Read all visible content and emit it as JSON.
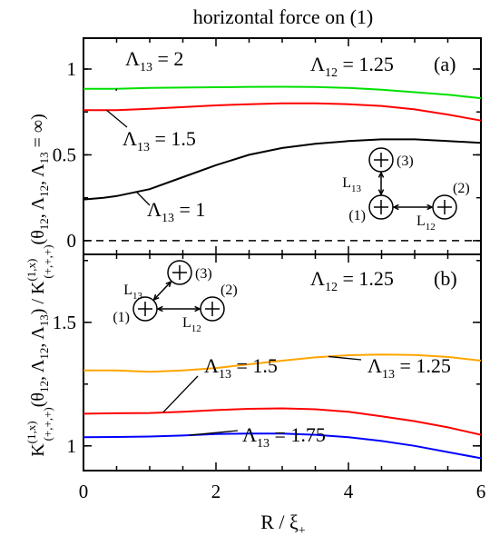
{
  "title": "horizontal force on (1)",
  "xlabel": "R / ξ",
  "xlabel_sub": "+",
  "ylabel": {
    "K": "K",
    "sup": "(1,x)",
    "sub": "(+,+,+)",
    "args": "(θ",
    "a1": "12",
    "a2": ", Λ",
    "a3": "12",
    "a4": ", Λ",
    "a5": "13",
    "a6": ") / ",
    "b_args": "(θ",
    "b1": "12",
    "b2": ", Λ",
    "b3": "12",
    "b4": ", Λ",
    "b5": "13",
    "b6": " = ∞)"
  },
  "chart_data": [
    {
      "type": "line",
      "panel_label": "(a)",
      "header": {
        "sym": "Λ",
        "sub": "12",
        "eq": " = 1.25"
      },
      "x_ticks": [
        "0",
        "2",
        "4",
        "6"
      ],
      "y_ticks": [
        "0",
        "0.5",
        "1"
      ],
      "xlim": [
        0,
        6
      ],
      "ylim": [
        -0.08,
        1.18
      ],
      "zero_line": {
        "y": 0,
        "style": "dashed"
      },
      "series": [
        {
          "name_sym": "Λ",
          "name_sub": "13",
          "name_eq": " = 2",
          "color": "#00e000",
          "x": [
            0,
            0.5,
            1,
            1.5,
            2,
            2.5,
            3,
            3.5,
            4,
            4.5,
            5,
            5.5,
            6
          ],
          "y": [
            0.885,
            0.885,
            0.89,
            0.892,
            0.894,
            0.896,
            0.897,
            0.895,
            0.89,
            0.88,
            0.865,
            0.85,
            0.83
          ]
        },
        {
          "name_sym": "Λ",
          "name_sub": "13",
          "name_eq": " = 1.5",
          "color": "#ff0000",
          "x": [
            0,
            0.5,
            1,
            1.5,
            2,
            2.5,
            3,
            3.5,
            4,
            4.5,
            5,
            5.5,
            6
          ],
          "y": [
            0.76,
            0.76,
            0.768,
            0.778,
            0.788,
            0.795,
            0.8,
            0.8,
            0.795,
            0.785,
            0.765,
            0.735,
            0.7
          ]
        },
        {
          "name_sym": "Λ",
          "name_sub": "13",
          "name_eq": " = 1",
          "color": "#000000",
          "x": [
            0,
            0.3,
            0.5,
            1,
            1.5,
            2,
            2.5,
            3,
            3.5,
            4,
            4.5,
            5,
            5.5,
            6
          ],
          "y": [
            0.24,
            0.25,
            0.26,
            0.3,
            0.37,
            0.44,
            0.5,
            0.54,
            0.565,
            0.58,
            0.59,
            0.59,
            0.58,
            0.57
          ]
        }
      ],
      "inset": {
        "d1": "(1)",
        "d2": "(2)",
        "d3": "(3)",
        "L13": "L",
        "L13_sub": "13",
        "L12": "L",
        "L12_sub": "12"
      }
    },
    {
      "type": "line",
      "panel_label": "(b)",
      "header": {
        "sym": "Λ",
        "sub": "12",
        "eq": " = 1.25"
      },
      "x_ticks": [
        "0",
        "2",
        "4",
        "6"
      ],
      "y_ticks": [
        "1",
        "1.5"
      ],
      "xlim": [
        0,
        6
      ],
      "ylim": [
        0.9,
        1.775
      ],
      "series": [
        {
          "name_sym": "Λ",
          "name_sub": "13",
          "name_eq": " = 1.25",
          "color": "#ffa500",
          "x": [
            0,
            0.5,
            1,
            1.5,
            2,
            2.5,
            3,
            3.5,
            4,
            4.5,
            5,
            5.5,
            6
          ],
          "y": [
            1.305,
            1.305,
            1.3,
            1.305,
            1.315,
            1.33,
            1.345,
            1.358,
            1.367,
            1.37,
            1.368,
            1.36,
            1.345
          ]
        },
        {
          "name_sym": "Λ",
          "name_sub": "13",
          "name_eq": " = 1.5",
          "color": "#ff0000",
          "x": [
            0,
            0.5,
            1,
            1.5,
            2,
            2.5,
            3,
            3.5,
            4,
            4.5,
            5,
            5.5,
            6
          ],
          "y": [
            1.13,
            1.132,
            1.133,
            1.138,
            1.145,
            1.15,
            1.152,
            1.148,
            1.138,
            1.12,
            1.1,
            1.075,
            1.045
          ]
        },
        {
          "name_sym": "Λ",
          "name_sub": "13",
          "name_eq": " = 1.75",
          "color": "#0000ff",
          "x": [
            0,
            0.5,
            1,
            1.5,
            2,
            2.5,
            3,
            3.5,
            4,
            4.5,
            5,
            5.5,
            6
          ],
          "y": [
            1.035,
            1.036,
            1.038,
            1.042,
            1.048,
            1.05,
            1.05,
            1.045,
            1.035,
            1.02,
            1.0,
            0.975,
            0.95
          ]
        }
      ],
      "inset": {
        "d1": "(1)",
        "d2": "(2)",
        "d3": "(3)",
        "L13": "L",
        "L13_sub": "13",
        "L12": "L",
        "L12_sub": "12"
      }
    }
  ]
}
